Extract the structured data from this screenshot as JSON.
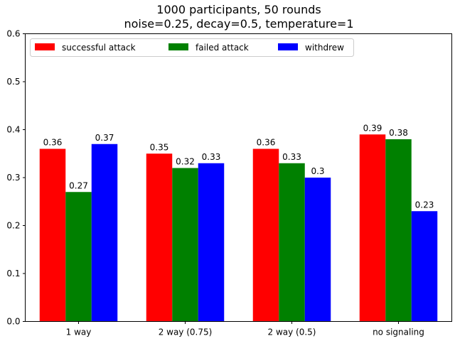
{
  "chart_data": {
    "type": "bar",
    "title": "1000 participants, 50 rounds",
    "subtitle": "noise=0.25, decay=0.5, temperature=1",
    "xlabel": "",
    "ylabel": "",
    "ylim": [
      0,
      0.6
    ],
    "yticks": [
      "0.0",
      "0.1",
      "0.2",
      "0.3",
      "0.4",
      "0.5",
      "0.6"
    ],
    "categories": [
      "1 way",
      "2 way (0.75)",
      "2 way (0.5)",
      "no signaling"
    ],
    "series": [
      {
        "name": "successful attack",
        "color": "#ff0000",
        "values": [
          0.36,
          0.35,
          0.36,
          0.39
        ],
        "labels": [
          "0.36",
          "0.35",
          "0.36",
          "0.39"
        ]
      },
      {
        "name": "failed attack",
        "color": "#008000",
        "values": [
          0.27,
          0.32,
          0.33,
          0.38
        ],
        "labels": [
          "0.27",
          "0.32",
          "0.33",
          "0.38"
        ]
      },
      {
        "name": "withdrew",
        "color": "#0000ff",
        "values": [
          0.37,
          0.33,
          0.3,
          0.23
        ],
        "labels": [
          "0.37",
          "0.33",
          "0.3",
          "0.23"
        ]
      }
    ],
    "legend": "top-left",
    "grid": false
  }
}
